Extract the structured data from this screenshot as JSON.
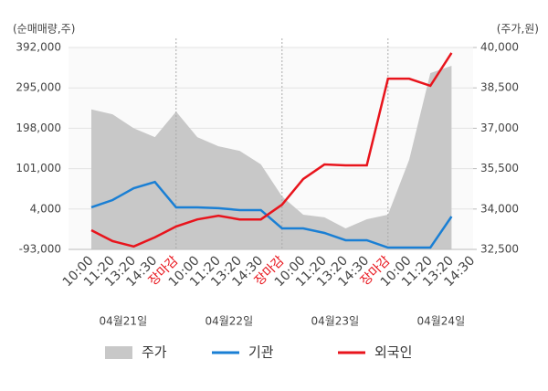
{
  "chart_data": {
    "type": "line",
    "y_label": "(순매매량,주)",
    "y2_label": "(주가,원)",
    "categories": [
      "10:00",
      "11:20",
      "13:20",
      "14:30",
      "장마감",
      "10:00",
      "11:20",
      "13:20",
      "14:30",
      "장마감",
      "10:00",
      "11:20",
      "13:20",
      "14:30",
      "장마감",
      "10:00",
      "11:20",
      "13:20",
      "14:30"
    ],
    "date_labels": [
      "04월21일",
      "04월22일",
      "04월23일",
      "04월24일"
    ],
    "ylim": [
      -93000,
      392000
    ],
    "yticks": [
      {
        "value": -93000,
        "label": "-93,000"
      },
      {
        "value": 4000,
        "label": "4,000"
      },
      {
        "value": 101000,
        "label": "101,000"
      },
      {
        "value": 198000,
        "label": "198,000"
      },
      {
        "value": 295000,
        "label": "295,000"
      },
      {
        "value": 392000,
        "label": "392,000"
      }
    ],
    "y2lim": [
      32500,
      40000
    ],
    "y2ticks": [
      {
        "value": 32500,
        "label": "32,500"
      },
      {
        "value": 34000,
        "label": "34,000"
      },
      {
        "value": 35500,
        "label": "35,500"
      },
      {
        "value": 37000,
        "label": "37,000"
      },
      {
        "value": 38500,
        "label": "38,500"
      },
      {
        "value": 40000,
        "label": "40,000"
      }
    ],
    "grid": true,
    "series": [
      {
        "name": "주가",
        "type": "area",
        "axis": "y2",
        "color": "#c8c8c8",
        "values": [
          37700,
          37520,
          37000,
          36670,
          37620,
          36670,
          36330,
          36160,
          35660,
          34470,
          33790,
          33690,
          33280,
          33620,
          33790,
          35830,
          39050,
          39320,
          null
        ]
      },
      {
        "name": "기관",
        "color": "#1a7fd4",
        "values": [
          8000,
          25500,
          54000,
          69000,
          8000,
          8000,
          6000,
          1500,
          1500,
          -42500,
          -42500,
          -53500,
          -71000,
          -71000,
          -88600,
          -88600,
          -88600,
          -14000,
          null
        ]
      },
      {
        "name": "외국인",
        "color": "#e8141c",
        "values": [
          -47000,
          -73000,
          -86000,
          -64000,
          -38000,
          -21000,
          -12000,
          -21000,
          -21000,
          14500,
          76000,
          111000,
          109000,
          109000,
          317000,
          317000,
          300000,
          379000,
          null
        ]
      }
    ]
  }
}
